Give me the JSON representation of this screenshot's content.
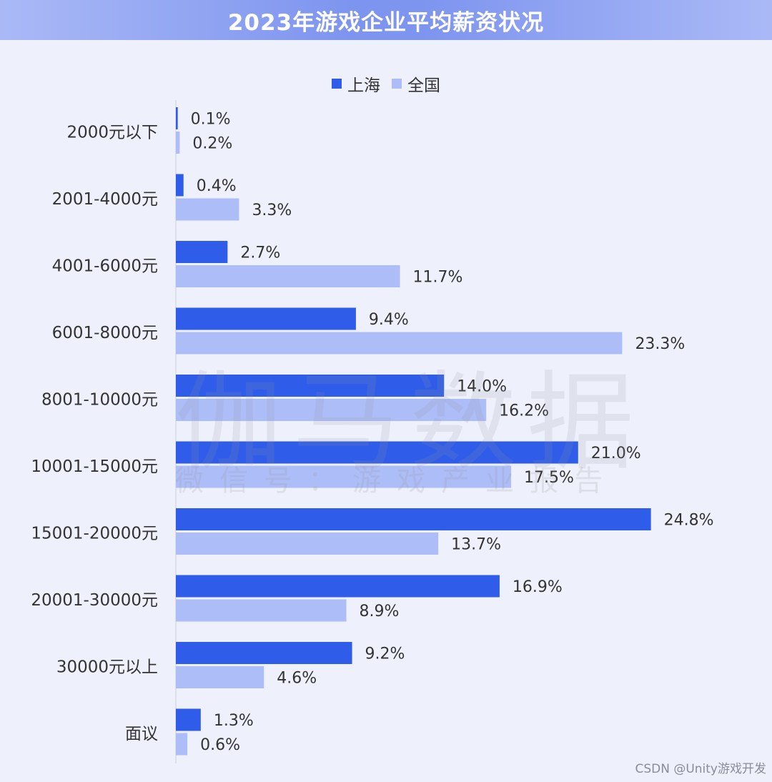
{
  "chart_data": {
    "type": "bar",
    "orientation": "horizontal",
    "title": "2023年游戏企业平均薪资状况",
    "categories": [
      "2000元以下",
      "2001-4000元",
      "4001-6000元",
      "6001-8000元",
      "8001-10000元",
      "10001-15000元",
      "15001-20000元",
      "20001-30000元",
      "30000元以上",
      "面议"
    ],
    "series": [
      {
        "name": "上海",
        "color": "#2f5ce8",
        "values": [
          0.1,
          0.4,
          2.7,
          9.4,
          14.0,
          21.0,
          24.8,
          16.9,
          9.2,
          1.3
        ],
        "labels": [
          "0.1%",
          "0.4%",
          "2.7%",
          "9.4%",
          "14.0%",
          "21.0%",
          "24.8%",
          "16.9%",
          "9.2%",
          "1.3%"
        ]
      },
      {
        "name": "全国",
        "color": "#adbdf7",
        "values": [
          0.2,
          3.3,
          11.7,
          23.3,
          16.2,
          17.5,
          13.7,
          8.9,
          4.6,
          0.6
        ],
        "labels": [
          "0.2%",
          "3.3%",
          "11.7%",
          "23.3%",
          "16.2%",
          "17.5%",
          "13.7%",
          "8.9%",
          "4.6%",
          "0.6%"
        ]
      }
    ],
    "legend_position": "top",
    "unit": "%"
  },
  "watermark": {
    "main": "伽马数据",
    "sub": "微信号：游戏产业报告"
  },
  "credit": "CSDN @Unity游戏开发"
}
